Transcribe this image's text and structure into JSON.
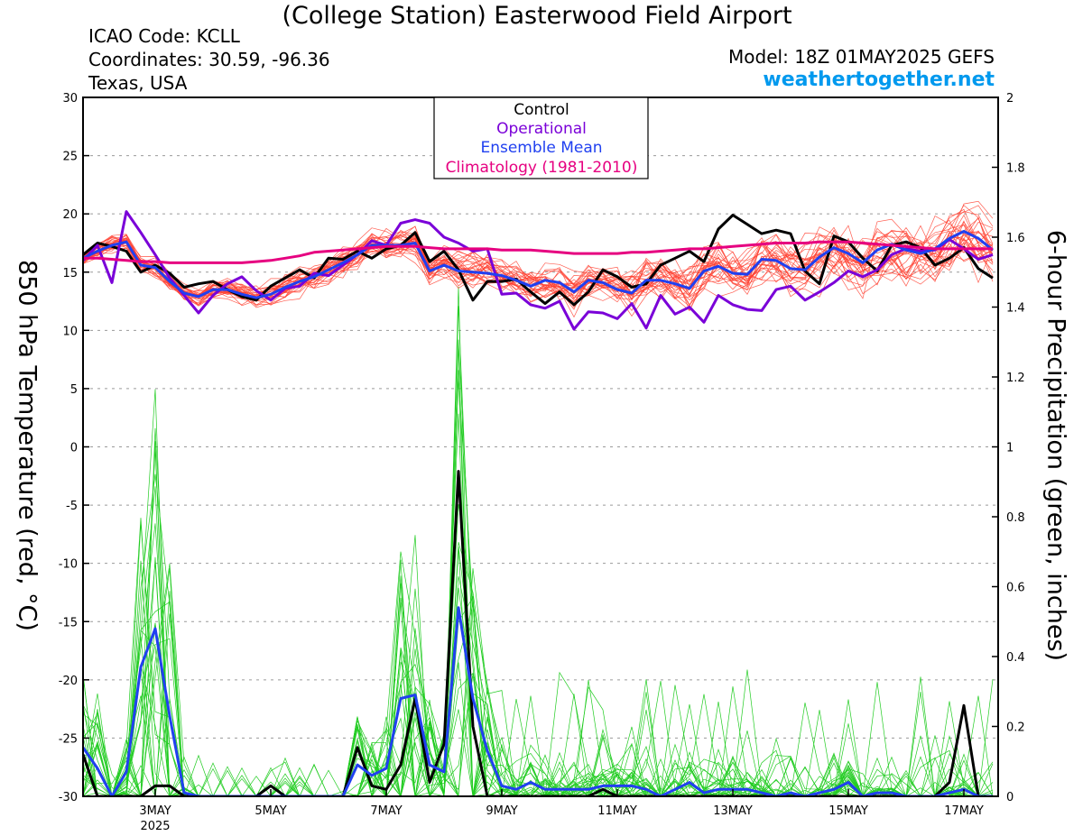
{
  "header": {
    "title": "(College Station) Easterwood Field Airport",
    "icao": "ICAO Code: KCLL",
    "coordinates": "Coordinates: 30.59, -96.36",
    "region": "Texas, USA",
    "model": "Model: 18Z 01MAY2025 GEFS",
    "website": "weathertogether.net"
  },
  "colors": {
    "control": "#000000",
    "operational": "#7a00d8",
    "ensemble_mean": "#2040f0",
    "climatology": "#e60080",
    "member_temp": "#ff4030",
    "member_precip": "#22cc22"
  },
  "chart_data": {
    "type": "line",
    "title": "(College Station) Easterwood Field Airport",
    "ylabel_left": "850 hPa Temperature (red, °C)",
    "ylabel_right": "6-hour Precipitation (green, inches)",
    "ylim_left": [
      -30,
      30
    ],
    "ylim_right": [
      0,
      2
    ],
    "grid": "dashed horizontal",
    "legend_position": "top-center",
    "legend": [
      "Control",
      "Operational",
      "Ensemble Mean",
      "Climatology (1981-2010)"
    ],
    "yticks_left": [
      "30",
      "25",
      "20",
      "15",
      "10",
      "5",
      "0",
      "-5",
      "-10",
      "-15",
      "-20",
      "-25",
      "-30"
    ],
    "yticks_right": [
      "2",
      "1.8",
      "1.6",
      "1.4",
      "1.2",
      "1",
      "0.8",
      "0.6",
      "0.4",
      "0.2",
      "0"
    ],
    "x_start": "2025-05-01 18Z",
    "x_step_hours": 6,
    "xticks": [
      {
        "label": "3MAY",
        "sub": "2025",
        "x": "2025-05-03"
      },
      {
        "label": "5MAY",
        "sub": "",
        "x": "2025-05-05"
      },
      {
        "label": "7MAY",
        "sub": "",
        "x": "2025-05-07"
      },
      {
        "label": "9MAY",
        "sub": "",
        "x": "2025-05-09"
      },
      {
        "label": "11MAY",
        "sub": "",
        "x": "2025-05-11"
      },
      {
        "label": "13MAY",
        "sub": "",
        "x": "2025-05-13"
      },
      {
        "label": "15MAY",
        "sub": "",
        "x": "2025-05-15"
      },
      {
        "label": "17MAY",
        "sub": "",
        "x": "2025-05-17"
      }
    ],
    "temperature_series": [
      {
        "name": "Control",
        "values": [
          16.5,
          17.5,
          17.2,
          16.8,
          15.0,
          15.6,
          14.9,
          13.7,
          14.0,
          14.2,
          13.5,
          12.9,
          12.6,
          13.8,
          14.5,
          15.2,
          14.5,
          16.2,
          16.1,
          16.8,
          16.2,
          17.0,
          17.3,
          18.4,
          15.9,
          16.8,
          15.2,
          12.6,
          14.2,
          14.2,
          14.4,
          13.3,
          12.3,
          13.3,
          12.2,
          13.3,
          15.2,
          14.6,
          13.7,
          14.0,
          15.6,
          16.2,
          16.8,
          15.9,
          18.7,
          19.9,
          19.1,
          18.3,
          18.6,
          18.3,
          15.1,
          14.0,
          18.1,
          17.6,
          16.2,
          15.1,
          17.3,
          17.6,
          17.1,
          15.6,
          16.2,
          17.1,
          15.3,
          14.5
        ]
      },
      {
        "name": "Operational",
        "values": [
          16.0,
          17.3,
          14.1,
          20.2,
          18.4,
          16.5,
          14.5,
          13.0,
          11.5,
          13.0,
          14.0,
          14.6,
          13.4,
          12.6,
          13.6,
          13.8,
          14.9,
          14.7,
          15.6,
          16.5,
          17.7,
          17.3,
          19.2,
          19.5,
          19.2,
          18.0,
          17.5,
          16.8,
          17.0,
          13.1,
          13.2,
          12.2,
          11.9,
          12.5,
          10.1,
          11.6,
          11.5,
          11.0,
          12.3,
          10.2,
          13.0,
          11.4,
          12.0,
          10.7,
          13.0,
          12.2,
          11.8,
          11.7,
          13.5,
          13.8,
          12.6,
          13.3,
          14.1,
          15.1,
          14.6,
          15.2,
          16.5,
          17.0,
          16.8,
          16.9,
          17.8,
          17.0,
          16.1,
          16.5
        ]
      },
      {
        "name": "Ensemble Mean",
        "values": [
          16.2,
          16.8,
          17.3,
          17.6,
          15.6,
          15.4,
          14.2,
          13.2,
          12.9,
          13.5,
          13.5,
          13.1,
          12.8,
          13.1,
          13.7,
          14.2,
          14.6,
          15.2,
          15.8,
          16.5,
          17.3,
          17.3,
          17.3,
          17.5,
          15.1,
          15.6,
          15.1,
          15.0,
          14.9,
          14.7,
          14.3,
          13.8,
          14.3,
          14.1,
          13.3,
          14.3,
          14.1,
          13.5,
          13.2,
          14.3,
          14.3,
          14.0,
          13.6,
          15.1,
          15.5,
          14.9,
          14.8,
          16.1,
          16.0,
          15.3,
          15.2,
          16.3,
          17.1,
          16.6,
          15.8,
          16.9,
          17.4,
          16.9,
          16.6,
          17.0,
          17.9,
          18.5,
          17.9,
          16.9
        ]
      },
      {
        "name": "Climatology (1981-2010)",
        "values": [
          16.2,
          16.2,
          16.1,
          16.0,
          15.9,
          15.9,
          15.8,
          15.8,
          15.8,
          15.8,
          15.8,
          15.8,
          15.9,
          16.0,
          16.2,
          16.4,
          16.7,
          16.8,
          16.9,
          17.0,
          17.1,
          17.2,
          17.2,
          17.2,
          17.1,
          17.0,
          17.0,
          17.0,
          17.0,
          16.9,
          16.9,
          16.9,
          16.8,
          16.7,
          16.6,
          16.6,
          16.6,
          16.6,
          16.7,
          16.7,
          16.8,
          16.9,
          17.0,
          17.0,
          17.1,
          17.2,
          17.3,
          17.4,
          17.5,
          17.5,
          17.5,
          17.6,
          17.6,
          17.6,
          17.5,
          17.4,
          17.3,
          17.2,
          17.1,
          17.0,
          17.0,
          17.0,
          17.0,
          17.0
        ]
      }
    ],
    "precipitation_series": [
      {
        "name": "Control",
        "values": [
          0.12,
          0.0,
          0.0,
          0.0,
          0.0,
          0.03,
          0.03,
          0.0,
          0.0,
          0.0,
          0.0,
          0.0,
          0.0,
          0.03,
          0.0,
          0.0,
          0.0,
          0.0,
          0.0,
          0.14,
          0.03,
          0.02,
          0.09,
          0.28,
          0.04,
          0.15,
          0.93,
          0.2,
          0.0,
          0.0,
          0.0,
          0.0,
          0.0,
          0.0,
          0.0,
          0.0,
          0.02,
          0.0,
          0.0,
          0.0,
          0.0,
          0.0,
          0.0,
          0.0,
          0.0,
          0.0,
          0.0,
          0.0,
          0.0,
          0.0,
          0.0,
          0.0,
          0.0,
          0.0,
          0.0,
          0.0,
          0.0,
          0.0,
          0.0,
          0.0,
          0.04,
          0.26,
          0.0,
          0.0
        ]
      },
      {
        "name": "Ensemble Mean",
        "values": [
          0.14,
          0.08,
          0.0,
          0.07,
          0.37,
          0.48,
          0.23,
          0.01,
          0.0,
          0.0,
          0.0,
          0.0,
          0.0,
          0.0,
          0.0,
          0.0,
          0.0,
          0.0,
          0.0,
          0.09,
          0.06,
          0.08,
          0.28,
          0.29,
          0.09,
          0.07,
          0.54,
          0.28,
          0.13,
          0.03,
          0.02,
          0.04,
          0.02,
          0.02,
          0.02,
          0.02,
          0.03,
          0.03,
          0.03,
          0.02,
          0.0,
          0.02,
          0.04,
          0.01,
          0.02,
          0.02,
          0.02,
          0.01,
          0.0,
          0.01,
          0.0,
          0.01,
          0.02,
          0.04,
          0.0,
          0.01,
          0.01,
          0.0,
          0.0,
          0.0,
          0.01,
          0.02,
          0.0,
          0.0
        ]
      }
    ]
  }
}
